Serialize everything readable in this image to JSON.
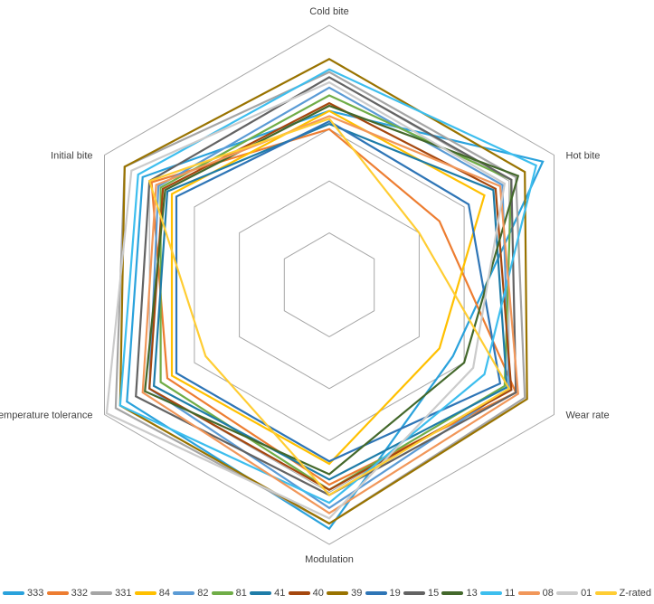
{
  "chart_data": {
    "type": "radar",
    "title": "",
    "axes": [
      "Cold bite",
      "Hot bite",
      "Wear rate",
      "Modulation",
      "Temperature tolerance",
      "Initial bite"
    ],
    "value_min": 0,
    "value_max": 10,
    "grid_levels": 5,
    "grid_on": true,
    "radial_spokes": false,
    "legend_position": "bottom",
    "grid_color": "#A6A6A6",
    "label_color": "#404040",
    "background_color": "#FFFFFF",
    "series": [
      {
        "name": "333",
        "color": "#2AA2DC",
        "values": [
          6.7,
          9.5,
          5.5,
          9.4,
          9.0,
          8.3
        ]
      },
      {
        "name": "332",
        "color": "#ED7D31",
        "values": [
          6.0,
          4.9,
          8.3,
          7.7,
          7.2,
          7.9
        ]
      },
      {
        "name": "331",
        "color": "#A5A5A5",
        "values": [
          8.2,
          8.3,
          8.7,
          9.2,
          9.5,
          9.1
        ]
      },
      {
        "name": "84",
        "color": "#FFC000",
        "values": [
          6.7,
          6.9,
          4.9,
          6.9,
          7.0,
          7.0
        ]
      },
      {
        "name": "82",
        "color": "#5B9BD5",
        "values": [
          7.6,
          7.7,
          8.0,
          8.6,
          8.0,
          7.6
        ]
      },
      {
        "name": "81",
        "color": "#70AD47",
        "values": [
          7.3,
          8.1,
          7.8,
          7.9,
          7.5,
          7.5
        ]
      },
      {
        "name": "41",
        "color": "#1E7CA8",
        "values": [
          6.2,
          7.3,
          7.9,
          7.5,
          7.8,
          7.2
        ]
      },
      {
        "name": "40",
        "color": "#A5470E",
        "values": [
          7.0,
          7.4,
          8.1,
          7.9,
          8.0,
          7.4
        ]
      },
      {
        "name": "39",
        "color": "#997300",
        "values": [
          8.7,
          8.7,
          8.8,
          9.2,
          9.3,
          9.1
        ]
      },
      {
        "name": "19",
        "color": "#2E75B6",
        "values": [
          6.3,
          6.2,
          7.6,
          6.8,
          6.8,
          6.8
        ]
      },
      {
        "name": "15",
        "color": "#636363",
        "values": [
          8.0,
          8.1,
          8.3,
          8.1,
          8.6,
          8.0
        ]
      },
      {
        "name": "13",
        "color": "#43682B",
        "values": [
          6.9,
          8.4,
          6.0,
          7.3,
          8.2,
          7.3
        ]
      },
      {
        "name": "11",
        "color": "#3DBEEE",
        "values": [
          8.3,
          9.2,
          6.9,
          8.4,
          9.3,
          8.5
        ]
      },
      {
        "name": "08",
        "color": "#F1975A",
        "values": [
          6.5,
          7.6,
          8.4,
          8.8,
          8.3,
          7.7
        ]
      },
      {
        "name": "01",
        "color": "#CBCBCB",
        "values": [
          7.8,
          7.8,
          6.4,
          9.0,
          9.9,
          8.8
        ]
      },
      {
        "name": "Z-rated",
        "color": "#FFCD33",
        "values": [
          6.4,
          4.0,
          8.0,
          8.1,
          5.5,
          8.0
        ]
      }
    ]
  }
}
